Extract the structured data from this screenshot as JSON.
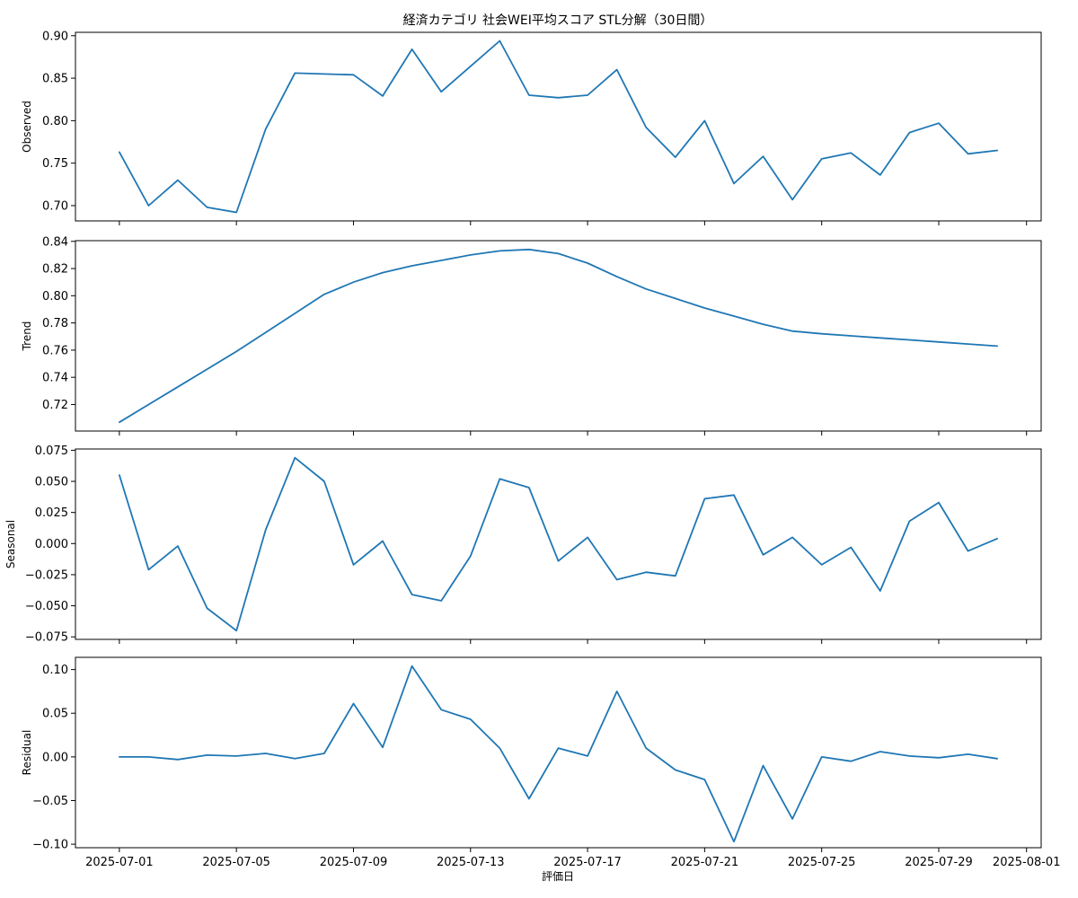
{
  "chart_data": {
    "type": "line",
    "title": "経済カテゴリ 社会WEI平均スコア STL分解（30日間）",
    "xlabel": "評価日",
    "x": [
      "2025-07-01",
      "2025-07-02",
      "2025-07-03",
      "2025-07-04",
      "2025-07-05",
      "2025-07-06",
      "2025-07-07",
      "2025-07-08",
      "2025-07-09",
      "2025-07-10",
      "2025-07-11",
      "2025-07-12",
      "2025-07-13",
      "2025-07-14",
      "2025-07-15",
      "2025-07-16",
      "2025-07-17",
      "2025-07-18",
      "2025-07-19",
      "2025-07-20",
      "2025-07-21",
      "2025-07-22",
      "2025-07-23",
      "2025-07-24",
      "2025-07-25",
      "2025-07-26",
      "2025-07-27",
      "2025-07-28",
      "2025-07-29",
      "2025-07-30",
      "2025-07-31"
    ],
    "xlim": [
      "2025-06-29.5",
      "2025-08-01.5"
    ],
    "xticks": [
      "2025-07-01",
      "2025-07-05",
      "2025-07-09",
      "2025-07-13",
      "2025-07-17",
      "2025-07-21",
      "2025-07-25",
      "2025-07-29",
      "2025-08-01"
    ],
    "grid": false,
    "panels": [
      {
        "ylabel": "Observed",
        "ylim": [
          0.682,
          0.904
        ],
        "yticks": [
          "0.70",
          "0.75",
          "0.80",
          "0.85",
          "0.90"
        ],
        "values": [
          0.763,
          0.7,
          0.73,
          0.698,
          0.692,
          0.79,
          0.856,
          0.855,
          0.854,
          0.829,
          0.884,
          0.834,
          0.864,
          0.894,
          0.83,
          0.827,
          0.83,
          0.86,
          0.792,
          0.757,
          0.8,
          0.726,
          0.758,
          0.707,
          0.755,
          0.762,
          0.736,
          0.786,
          0.797,
          0.761,
          0.765
        ]
      },
      {
        "ylabel": "Trend",
        "ylim": [
          0.7005,
          0.8405
        ],
        "yticks": [
          "0.72",
          "0.74",
          "0.76",
          "0.78",
          "0.80",
          "0.82",
          "0.84"
        ],
        "values": [
          0.707,
          0.72,
          0.733,
          0.746,
          0.759,
          0.773,
          0.787,
          0.801,
          0.81,
          0.817,
          0.822,
          0.826,
          0.83,
          0.833,
          0.834,
          0.831,
          0.824,
          0.814,
          0.805,
          0.798,
          0.791,
          0.785,
          0.779,
          0.774,
          0.772,
          0.7705,
          0.769,
          0.7675,
          0.766,
          0.7645,
          0.763
        ]
      },
      {
        "ylabel": "Seasonal",
        "ylim": [
          -0.077,
          0.076
        ],
        "yticks": [
          "−0.075",
          "−0.050",
          "−0.025",
          "0.000",
          "0.025",
          "0.050",
          "0.075"
        ],
        "values": [
          0.055,
          -0.021,
          -0.002,
          -0.052,
          -0.07,
          0.011,
          0.069,
          0.05,
          -0.017,
          0.002,
          -0.041,
          -0.046,
          -0.01,
          0.052,
          0.045,
          -0.014,
          0.005,
          -0.029,
          -0.023,
          -0.026,
          0.036,
          0.039,
          -0.009,
          0.005,
          -0.017,
          -0.003,
          -0.038,
          0.018,
          0.033,
          -0.006,
          0.004
        ]
      },
      {
        "ylabel": "Residual",
        "ylim": [
          -0.104,
          0.114
        ],
        "yticks": [
          "−0.10",
          "−0.05",
          "0.00",
          "0.05",
          "0.10"
        ],
        "values": [
          0.0,
          0.0,
          -0.003,
          0.002,
          0.001,
          0.004,
          -0.002,
          0.004,
          0.061,
          0.011,
          0.104,
          0.054,
          0.043,
          0.01,
          -0.048,
          0.01,
          0.001,
          0.075,
          0.01,
          -0.015,
          -0.026,
          -0.097,
          -0.01,
          -0.071,
          0.0,
          -0.005,
          0.006,
          0.001,
          -0.001,
          0.003,
          -0.002
        ]
      }
    ]
  }
}
